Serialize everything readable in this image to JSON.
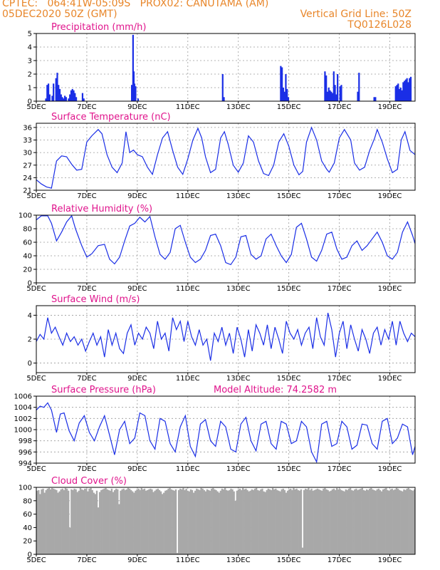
{
  "header": {
    "line1_left": "CPTEC:   064:41W-05:09S   PROX02: CANUTAMA (AM)",
    "line2_left": "05DEC2020 50Z (GMT)",
    "line2_right": "Vertical Grid Line: 50Z",
    "line3_right": "TQ0126L028"
  },
  "colors": {
    "header": "#e8862a",
    "title": "#e0148c",
    "line": "#1a2ee6",
    "bar": "#1a2ee6",
    "cloud": "#a8a8a8"
  },
  "chart_data": [
    {
      "id": "precip",
      "type": "bar",
      "title": "Precipitation (mm/h)",
      "x_tick_labels": [
        "5DEC",
        "7DEC",
        "9DEC",
        "11DEC",
        "13DEC",
        "15DEC",
        "17DEC",
        "19DEC"
      ],
      "x_tick_days": [
        5,
        7,
        9,
        11,
        13,
        15,
        17,
        19
      ],
      "xlim": [
        5,
        20
      ],
      "ylim": [
        0,
        5
      ],
      "yticks": [
        0,
        1,
        2,
        3,
        4,
        5
      ],
      "grid": true,
      "x": [
        5.35,
        5.4,
        5.45,
        5.5,
        5.6,
        5.65,
        5.75,
        5.8,
        5.85,
        5.9,
        5.95,
        6.0,
        6.05,
        6.1,
        6.15,
        6.25,
        6.3,
        6.35,
        6.4,
        6.45,
        6.5,
        6.55,
        6.8,
        6.85,
        8.75,
        8.8,
        8.83,
        8.86,
        8.9,
        9.0,
        12.35,
        12.4,
        14.65,
        14.7,
        14.75,
        14.8,
        14.85,
        14.9,
        14.95,
        16.4,
        16.45,
        16.5,
        16.55,
        16.6,
        16.65,
        16.7,
        16.75,
        16.8,
        16.85,
        16.9,
        17.0,
        17.05,
        17.7,
        17.75,
        18.35,
        18.4,
        19.2,
        19.25,
        19.3,
        19.35,
        19.4,
        19.45,
        19.5,
        19.55,
        19.6,
        19.65,
        19.7,
        19.75,
        19.8
      ],
      "values": [
        0.2,
        1.2,
        1.3,
        0.5,
        0.4,
        1.3,
        1.7,
        2.1,
        1.2,
        0.9,
        0.5,
        0.3,
        0.2,
        0.4,
        0.3,
        0.2,
        0.5,
        0.8,
        0.9,
        0.8,
        0.6,
        0.3,
        0.6,
        0.2,
        1.2,
        4.9,
        2.2,
        1.3,
        1.1,
        0.2,
        2.0,
        0.3,
        2.6,
        2.5,
        1.0,
        0.7,
        2.0,
        0.9,
        0.3,
        2.2,
        1.9,
        0.7,
        1.0,
        0.8,
        0.7,
        0.6,
        2.2,
        1.2,
        0.5,
        2.0,
        1.1,
        1.2,
        0.7,
        2.1,
        0.3,
        0.3,
        1.1,
        1.2,
        1.3,
        0.9,
        1.0,
        0.8,
        1.4,
        1.5,
        1.6,
        1.7,
        1.4,
        1.7,
        1.8
      ]
    },
    {
      "id": "temp",
      "type": "line",
      "title": "Surface Temperature (nC)",
      "x_tick_labels": [
        "5DEC",
        "7DEC",
        "9DEC",
        "11DEC",
        "13DEC",
        "15DEC",
        "17DEC",
        "19DEC"
      ],
      "x_tick_days": [
        5,
        7,
        9,
        11,
        13,
        15,
        17,
        19
      ],
      "xlim": [
        5,
        20
      ],
      "ylim": [
        21,
        37
      ],
      "yticks": [
        21,
        24,
        27,
        30,
        33,
        36
      ],
      "grid": true,
      "x": [
        5.0,
        5.2,
        5.4,
        5.6,
        5.8,
        6.0,
        6.2,
        6.4,
        6.6,
        6.8,
        7.0,
        7.2,
        7.45,
        7.6,
        7.8,
        8.0,
        8.2,
        8.4,
        8.55,
        8.7,
        8.85,
        9.0,
        9.2,
        9.4,
        9.6,
        9.8,
        10.0,
        10.2,
        10.4,
        10.6,
        10.8,
        11.0,
        11.2,
        11.4,
        11.55,
        11.7,
        11.9,
        12.1,
        12.3,
        12.45,
        12.6,
        12.8,
        13.0,
        13.2,
        13.4,
        13.6,
        13.8,
        14.0,
        14.2,
        14.4,
        14.6,
        14.8,
        15.0,
        15.2,
        15.4,
        15.55,
        15.7,
        15.9,
        16.1,
        16.3,
        16.5,
        16.6,
        16.8,
        17.0,
        17.2,
        17.45,
        17.6,
        17.8,
        18.0,
        18.2,
        18.4,
        18.5,
        18.7,
        18.9,
        19.1,
        19.3,
        19.45,
        19.6,
        19.8,
        20.0
      ],
      "values": [
        23.5,
        22.5,
        21.8,
        21.5,
        28.0,
        29.2,
        29.0,
        27.2,
        25.8,
        26.0,
        32.5,
        34.0,
        35.5,
        34.5,
        29.5,
        26.5,
        25.2,
        27.5,
        35.0,
        30.0,
        30.6,
        29.5,
        29.0,
        26.5,
        24.8,
        29.5,
        33.5,
        35.0,
        30.5,
        26.5,
        24.8,
        28.5,
        33.0,
        35.8,
        33.5,
        29.0,
        25.2,
        26.0,
        33.5,
        35.0,
        32.0,
        27.0,
        25.3,
        27.5,
        34.0,
        32.5,
        28.0,
        25.0,
        24.5,
        27.0,
        32.5,
        34.5,
        31.5,
        27.0,
        24.7,
        25.5,
        32.5,
        36.0,
        33.0,
        28.0,
        26.0,
        25.3,
        27.5,
        33.5,
        35.5,
        33.0,
        27.5,
        25.8,
        26.5,
        30.5,
        33.5,
        35.5,
        32.5,
        28.5,
        25.2,
        26.0,
        33.0,
        35.0,
        30.5,
        29.5
      ]
    },
    {
      "id": "rh",
      "type": "line",
      "title": "Relative Humidity (%)",
      "x_tick_labels": [
        "5DEC",
        "7DEC",
        "9DEC",
        "11DEC",
        "13DEC",
        "15DEC",
        "17DEC",
        "19DEC"
      ],
      "x_tick_days": [
        5,
        7,
        9,
        11,
        13,
        15,
        17,
        19
      ],
      "xlim": [
        5,
        20
      ],
      "ylim": [
        0,
        100
      ],
      "yticks": [
        0,
        20,
        40,
        60,
        80,
        100
      ],
      "grid": true,
      "x": [
        5.0,
        5.2,
        5.45,
        5.6,
        5.8,
        6.0,
        6.2,
        6.4,
        6.55,
        6.8,
        7.0,
        7.2,
        7.45,
        7.7,
        7.9,
        8.1,
        8.3,
        8.5,
        8.7,
        8.9,
        9.1,
        9.3,
        9.5,
        9.7,
        9.9,
        10.1,
        10.3,
        10.5,
        10.7,
        10.9,
        11.1,
        11.3,
        11.5,
        11.7,
        11.9,
        12.1,
        12.3,
        12.5,
        12.7,
        12.9,
        13.1,
        13.3,
        13.5,
        13.7,
        13.9,
        14.1,
        14.3,
        14.5,
        14.7,
        14.9,
        15.1,
        15.3,
        15.5,
        15.7,
        15.9,
        16.1,
        16.3,
        16.5,
        16.7,
        16.9,
        17.1,
        17.3,
        17.5,
        17.7,
        17.9,
        18.1,
        18.3,
        18.5,
        18.7,
        18.9,
        19.1,
        19.3,
        19.5,
        19.7,
        19.9,
        20.0
      ],
      "values": [
        93,
        99,
        99,
        88,
        62,
        75,
        90,
        99,
        80,
        55,
        38,
        43,
        55,
        57,
        35,
        28,
        38,
        62,
        84,
        88,
        97,
        90,
        98,
        68,
        42,
        35,
        45,
        80,
        85,
        60,
        38,
        30,
        35,
        48,
        70,
        72,
        55,
        30,
        27,
        38,
        68,
        70,
        42,
        35,
        40,
        65,
        72,
        55,
        40,
        30,
        42,
        82,
        88,
        65,
        38,
        32,
        48,
        72,
        75,
        50,
        35,
        38,
        55,
        62,
        48,
        55,
        65,
        75,
        60,
        40,
        35,
        45,
        75,
        90,
        70,
        58
      ]
    },
    {
      "id": "wind",
      "type": "line",
      "title": "Surface Wind (m/s)",
      "x_tick_labels": [
        "5DEC",
        "7DEC",
        "9DEC",
        "11DEC",
        "13DEC",
        "15DEC",
        "17DEC",
        "19DEC"
      ],
      "x_tick_days": [
        5,
        7,
        9,
        11,
        13,
        15,
        17,
        19
      ],
      "xlim": [
        5,
        20
      ],
      "ylim": [
        -0.8,
        4.8
      ],
      "yticks": [
        0,
        2,
        4
      ],
      "grid": true,
      "x": [
        5.0,
        5.15,
        5.3,
        5.45,
        5.6,
        5.75,
        5.9,
        6.05,
        6.2,
        6.35,
        6.5,
        6.65,
        6.8,
        6.95,
        7.1,
        7.25,
        7.4,
        7.55,
        7.7,
        7.85,
        8.0,
        8.15,
        8.3,
        8.45,
        8.6,
        8.75,
        8.9,
        9.05,
        9.2,
        9.35,
        9.5,
        9.65,
        9.8,
        9.95,
        10.1,
        10.25,
        10.4,
        10.55,
        10.7,
        10.85,
        11.0,
        11.15,
        11.3,
        11.45,
        11.6,
        11.75,
        11.9,
        12.05,
        12.2,
        12.35,
        12.5,
        12.65,
        12.8,
        12.95,
        13.1,
        13.25,
        13.4,
        13.55,
        13.7,
        13.85,
        14.0,
        14.15,
        14.3,
        14.45,
        14.6,
        14.75,
        14.9,
        15.05,
        15.2,
        15.35,
        15.5,
        15.65,
        15.8,
        15.95,
        16.1,
        16.25,
        16.4,
        16.55,
        16.7,
        16.85,
        17.0,
        17.15,
        17.3,
        17.45,
        17.6,
        17.75,
        17.9,
        18.05,
        18.2,
        18.35,
        18.5,
        18.65,
        18.8,
        18.95,
        19.1,
        19.25,
        19.4,
        19.55,
        19.7,
        19.85,
        20.0
      ],
      "values": [
        1.8,
        2.4,
        2.0,
        3.8,
        2.5,
        3.0,
        2.2,
        1.5,
        2.5,
        1.8,
        2.2,
        1.5,
        2.0,
        1.0,
        1.8,
        2.5,
        1.5,
        2.2,
        0.5,
        2.8,
        1.5,
        2.5,
        1.2,
        0.8,
        2.5,
        3.2,
        1.5,
        2.5,
        2.0,
        3.0,
        2.5,
        1.2,
        3.5,
        2.0,
        2.5,
        1.0,
        3.8,
        2.8,
        3.5,
        1.8,
        3.5,
        2.2,
        1.5,
        2.8,
        1.5,
        2.0,
        0.2,
        2.5,
        1.8,
        3.0,
        1.5,
        2.5,
        0.8,
        3.0,
        2.0,
        0.5,
        2.8,
        1.0,
        3.2,
        2.5,
        1.5,
        3.2,
        1.2,
        3.0,
        2.0,
        0.8,
        3.5,
        2.5,
        2.0,
        2.8,
        1.5,
        2.5,
        3.0,
        1.2,
        3.8,
        2.2,
        1.5,
        4.2,
        2.8,
        0.5,
        2.5,
        3.5,
        1.2,
        3.2,
        2.0,
        1.0,
        2.8,
        2.0,
        0.8,
        2.5,
        3.0,
        1.5,
        2.8,
        2.0,
        3.5,
        1.5,
        3.5,
        2.5,
        1.8,
        2.5,
        2.2
      ]
    },
    {
      "id": "pressure",
      "type": "line",
      "title": "Surface Pressure (hPa)",
      "annotation": "Model Altitude: 74.2582 m",
      "x_tick_labels": [
        "5DEC",
        "7DEC",
        "9DEC",
        "11DEC",
        "13DEC",
        "15DEC",
        "17DEC",
        "19DEC"
      ],
      "x_tick_days": [
        5,
        7,
        9,
        11,
        13,
        15,
        17,
        19
      ],
      "xlim": [
        5,
        20
      ],
      "ylim": [
        994,
        1006
      ],
      "yticks": [
        994,
        996,
        998,
        1000,
        1002,
        1004,
        1006
      ],
      "grid": true,
      "x": [
        5.0,
        5.15,
        5.3,
        5.45,
        5.6,
        5.8,
        5.95,
        6.1,
        6.3,
        6.5,
        6.7,
        6.9,
        7.1,
        7.3,
        7.5,
        7.7,
        7.9,
        8.1,
        8.3,
        8.5,
        8.7,
        8.9,
        9.1,
        9.3,
        9.5,
        9.7,
        9.9,
        10.1,
        10.3,
        10.5,
        10.7,
        10.9,
        11.1,
        11.3,
        11.5,
        11.7,
        11.9,
        12.1,
        12.3,
        12.5,
        12.7,
        12.9,
        13.1,
        13.3,
        13.5,
        13.7,
        13.9,
        14.1,
        14.3,
        14.5,
        14.7,
        14.9,
        15.1,
        15.3,
        15.5,
        15.7,
        15.9,
        16.1,
        16.3,
        16.5,
        16.7,
        16.9,
        17.1,
        17.3,
        17.5,
        17.7,
        17.9,
        18.1,
        18.3,
        18.5,
        18.7,
        18.9,
        19.1,
        19.3,
        19.5,
        19.7,
        19.9,
        20.0
      ],
      "values": [
        1003.5,
        1004.2,
        1004.0,
        1004.8,
        1003.5,
        999.5,
        1002.8,
        1003.0,
        999.8,
        998.0,
        1001.2,
        1002.5,
        999.5,
        998.0,
        1000.5,
        1002.5,
        999.0,
        995.5,
        1000.0,
        1001.5,
        997.5,
        998.5,
        1003.0,
        1002.5,
        998.0,
        996.5,
        1002.0,
        1001.5,
        997.5,
        996.0,
        1000.5,
        1002.5,
        997.0,
        995.2,
        1001.0,
        1001.8,
        998.0,
        997.0,
        1001.5,
        1000.5,
        996.5,
        996.0,
        1001.0,
        1002.2,
        998.0,
        996.2,
        1001.0,
        1001.5,
        997.5,
        996.5,
        1001.5,
        1001.0,
        997.5,
        998.0,
        1001.5,
        1000.5,
        996.0,
        994.2,
        1001.0,
        1001.5,
        997.0,
        997.5,
        1001.5,
        1000.5,
        996.5,
        997.2,
        1001.0,
        1000.8,
        997.5,
        996.5,
        1001.5,
        1002.0,
        997.5,
        998.5,
        1001.0,
        1000.5,
        995.5,
        997.0
      ]
    },
    {
      "id": "cloud",
      "type": "bar",
      "title": "Cloud Cover (%)",
      "x_tick_labels": [
        "5DEC",
        "7DEC",
        "9DEC",
        "11DEC",
        "13DEC",
        "15DEC",
        "17DEC",
        "19DEC"
      ],
      "x_tick_days": [
        5,
        7,
        9,
        11,
        13,
        15,
        17,
        19
      ],
      "xlim": [
        5,
        20
      ],
      "ylim": [
        0,
        100
      ],
      "yticks": [
        0,
        20,
        40,
        60,
        80,
        100
      ],
      "grid": true,
      "values": [
        95,
        96,
        90,
        97,
        98,
        92,
        96,
        98,
        99,
        97,
        99,
        98,
        97,
        96,
        92,
        94,
        97,
        98,
        96,
        99,
        98,
        95,
        40,
        97,
        96,
        98,
        97,
        93,
        95,
        99,
        97,
        96,
        98,
        98,
        94,
        98,
        99,
        96,
        92,
        90,
        95,
        70,
        93,
        96,
        97,
        98,
        99,
        97,
        96,
        95,
        98,
        93,
        96,
        98,
        97,
        75,
        95,
        97,
        98,
        96,
        97,
        99,
        98,
        96,
        94,
        92,
        95,
        97,
        98,
        96,
        99,
        97,
        98,
        95,
        96,
        97,
        98,
        97,
        93,
        95,
        97,
        98,
        96,
        94,
        90,
        92,
        95,
        96,
        98,
        99,
        97,
        96,
        95,
        97,
        2,
        96,
        98,
        97,
        99,
        96,
        98,
        95,
        94,
        97,
        96,
        92,
        95,
        98,
        97,
        96,
        99,
        98,
        96,
        94,
        97,
        96,
        95,
        98,
        99,
        97,
        96,
        94,
        92,
        95,
        98,
        97,
        99,
        96,
        95,
        96,
        98,
        97,
        94,
        80,
        95,
        97,
        98,
        96,
        99,
        97,
        98,
        96,
        94,
        95,
        97,
        96,
        98,
        99,
        96,
        95,
        97,
        98,
        94,
        93,
        96,
        98,
        97,
        96,
        99,
        97,
        98,
        96,
        95,
        94,
        97,
        98,
        96,
        92,
        95,
        97,
        98,
        96,
        99,
        97,
        98,
        96,
        95,
        97,
        10,
        96,
        98,
        97,
        99,
        96,
        98,
        95,
        96,
        97,
        98,
        97,
        96,
        95,
        98,
        99,
        97,
        96,
        94,
        95,
        97,
        98,
        96,
        99,
        97,
        98,
        96,
        95,
        94,
        97,
        96,
        98,
        99,
        96,
        95,
        97,
        98,
        96,
        97,
        98,
        99,
        96,
        95,
        97,
        96,
        98,
        99,
        97,
        96,
        95,
        97,
        98,
        96,
        94,
        97,
        98,
        99,
        96,
        95,
        97,
        98,
        96,
        97,
        99,
        98,
        96,
        95,
        94,
        97,
        96,
        98,
        99,
        97,
        96,
        95,
        97
      ]
    }
  ]
}
